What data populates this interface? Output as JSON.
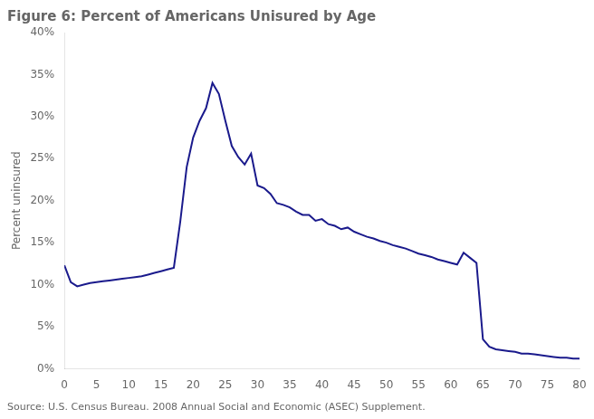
{
  "chart_data": {
    "type": "line",
    "title": "Figure 6: Percent of Americans Unisured by Age",
    "ylabel": "Percent uninsured",
    "annotations": [
      "Source: U.S. Census Bureau. 2008 Annual Social and Economic (ASEC) Supplement."
    ],
    "color": "#1a1a8c",
    "grid": false,
    "xlim": [
      0,
      80
    ],
    "ylim": [
      0,
      0.4
    ],
    "xticks": [
      0,
      5,
      10,
      15,
      20,
      25,
      30,
      35,
      40,
      45,
      50,
      55,
      60,
      65,
      70,
      75,
      80
    ],
    "yticks": [
      {
        "value": 0,
        "label": "0%"
      },
      {
        "value": 0.05,
        "label": "5%"
      },
      {
        "value": 0.1,
        "label": "10%"
      },
      {
        "value": 0.15,
        "label": "15%"
      },
      {
        "value": 0.2,
        "label": "20%"
      },
      {
        "value": 0.25,
        "label": "25%"
      },
      {
        "value": 0.3,
        "label": "30%"
      },
      {
        "value": 0.35,
        "label": "35%"
      },
      {
        "value": 0.4,
        "label": "40%"
      }
    ],
    "x": [
      0,
      1,
      2,
      3,
      4,
      5,
      6,
      7,
      8,
      9,
      10,
      11,
      12,
      13,
      14,
      15,
      16,
      17,
      18,
      19,
      20,
      21,
      22,
      23,
      24,
      25,
      26,
      27,
      28,
      29,
      30,
      31,
      32,
      33,
      34,
      35,
      36,
      37,
      38,
      39,
      40,
      41,
      42,
      43,
      44,
      45,
      46,
      47,
      48,
      49,
      50,
      51,
      52,
      53,
      54,
      55,
      56,
      57,
      58,
      59,
      60,
      61,
      62,
      63,
      64,
      65,
      66,
      67,
      68,
      69,
      70,
      71,
      72,
      73,
      74,
      75,
      76,
      77,
      78,
      79,
      80
    ],
    "values": [
      0.123,
      0.103,
      0.098,
      0.1,
      0.102,
      0.103,
      0.104,
      0.105,
      0.106,
      0.107,
      0.108,
      0.109,
      0.11,
      0.112,
      0.114,
      0.116,
      0.118,
      0.12,
      0.175,
      0.24,
      0.275,
      0.295,
      0.31,
      0.34,
      0.327,
      0.295,
      0.265,
      0.252,
      0.243,
      0.256,
      0.218,
      0.215,
      0.208,
      0.197,
      0.195,
      0.192,
      0.187,
      0.183,
      0.183,
      0.176,
      0.178,
      0.172,
      0.17,
      0.166,
      0.168,
      0.163,
      0.16,
      0.157,
      0.155,
      0.152,
      0.15,
      0.147,
      0.145,
      0.143,
      0.14,
      0.137,
      0.135,
      0.133,
      0.13,
      0.128,
      0.126,
      0.124,
      0.138,
      0.132,
      0.126,
      0.035,
      0.026,
      0.023,
      0.022,
      0.021,
      0.02,
      0.018,
      0.018,
      0.017,
      0.016,
      0.015,
      0.014,
      0.013,
      0.013,
      0.012,
      0.012
    ]
  }
}
